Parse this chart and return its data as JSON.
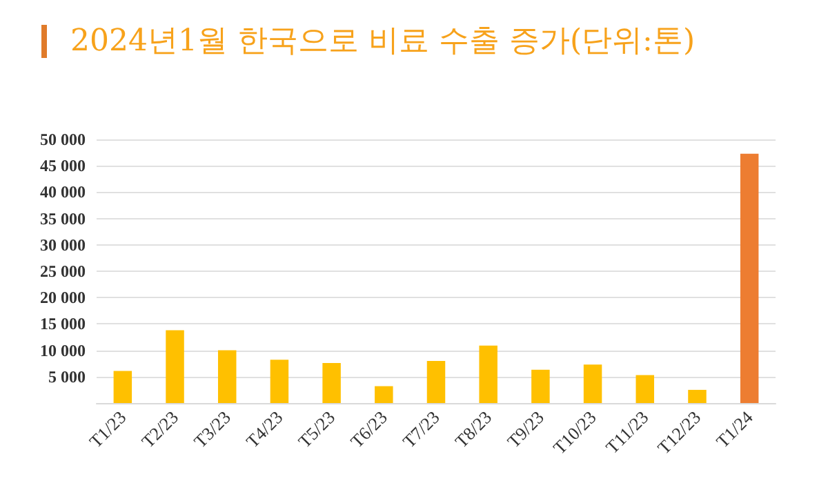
{
  "chart_data": {
    "type": "bar",
    "title": "2024년1월 한국으로 비료 수출 증가(단위:톤)",
    "categories": [
      "T1/23",
      "T2/23",
      "T3/23",
      "T4/23",
      "T5/23",
      "T6/23",
      "T7/23",
      "T8/23",
      "T9/23",
      "T10/23",
      "T11/23",
      "T12/23",
      "T1/24"
    ],
    "values": [
      6100,
      13800,
      10000,
      8200,
      7600,
      3200,
      8000,
      10900,
      6300,
      7300,
      5300,
      2500,
      47300
    ],
    "colors": [
      "#ffc000",
      "#ffc000",
      "#ffc000",
      "#ffc000",
      "#ffc000",
      "#ffc000",
      "#ffc000",
      "#ffc000",
      "#ffc000",
      "#ffc000",
      "#ffc000",
      "#ffc000",
      "#ed7d31"
    ],
    "ylim": [
      0,
      50000
    ],
    "yticks": [
      {
        "value": 0,
        "label": null
      },
      {
        "value": 5000,
        "label": "5 000"
      },
      {
        "value": 10000,
        "label": "10 000"
      },
      {
        "value": 15000,
        "label": "15 000"
      },
      {
        "value": 20000,
        "label": "20 000"
      },
      {
        "value": 25000,
        "label": "25 000"
      },
      {
        "value": 30000,
        "label": "30 000"
      },
      {
        "value": 35000,
        "label": "35 000"
      },
      {
        "value": 40000,
        "label": "40 000"
      },
      {
        "value": 45000,
        "label": "45 000"
      },
      {
        "value": 50000,
        "label": "50 000"
      }
    ],
    "grid": "y"
  }
}
